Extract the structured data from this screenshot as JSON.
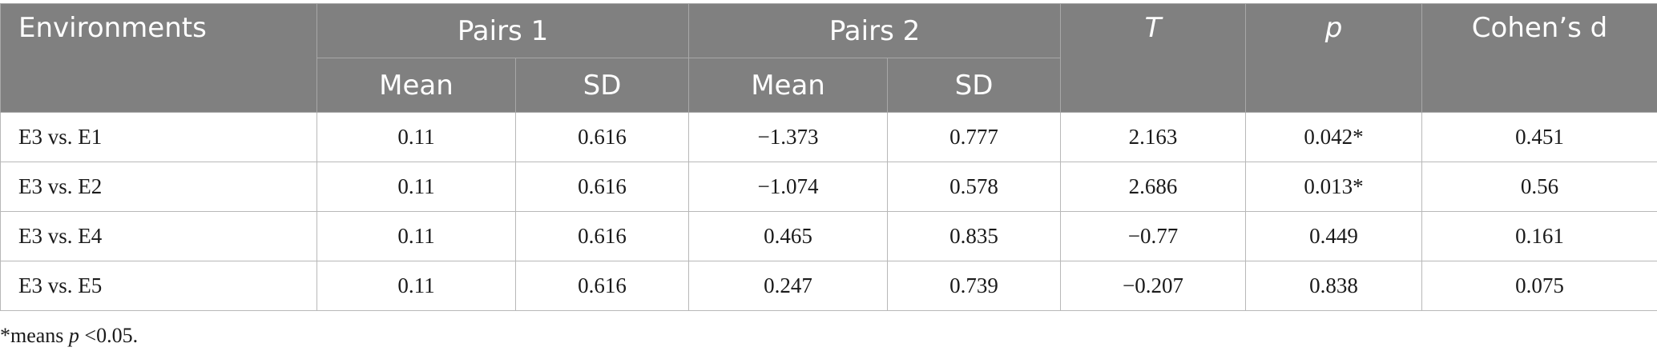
{
  "header": {
    "environments": "Environments",
    "pairs1": "Pairs 1",
    "pairs2": "Pairs 2",
    "t": "T",
    "p": "p",
    "cohens_d": "Cohen’s d",
    "mean": "Mean",
    "sd": "SD"
  },
  "rows": [
    {
      "env": "E3 vs. E1",
      "p1_mean": "0.11",
      "p1_sd": "0.616",
      "p2_mean": "−1.373",
      "p2_sd": "0.777",
      "t": "2.163",
      "p": "0.042*",
      "d": "0.451"
    },
    {
      "env": "E3 vs. E2",
      "p1_mean": "0.11",
      "p1_sd": "0.616",
      "p2_mean": "−1.074",
      "p2_sd": "0.578",
      "t": "2.686",
      "p": "0.013*",
      "d": "0.56"
    },
    {
      "env": "E3 vs. E4",
      "p1_mean": "0.11",
      "p1_sd": "0.616",
      "p2_mean": "0.465",
      "p2_sd": "0.835",
      "t": "−0.77",
      "p": "0.449",
      "d": "0.161"
    },
    {
      "env": "E3 vs. E5",
      "p1_mean": "0.11",
      "p1_sd": "0.616",
      "p2_mean": "0.247",
      "p2_sd": "0.739",
      "t": "−0.207",
      "p": "0.838",
      "d": "0.075"
    }
  ],
  "footnote": {
    "prefix": "*means ",
    "p": "p",
    "suffix": " <0.05."
  },
  "colors": {
    "header_bg": "#808080",
    "header_text": "#ffffff",
    "grid": "#b8b8b8"
  }
}
